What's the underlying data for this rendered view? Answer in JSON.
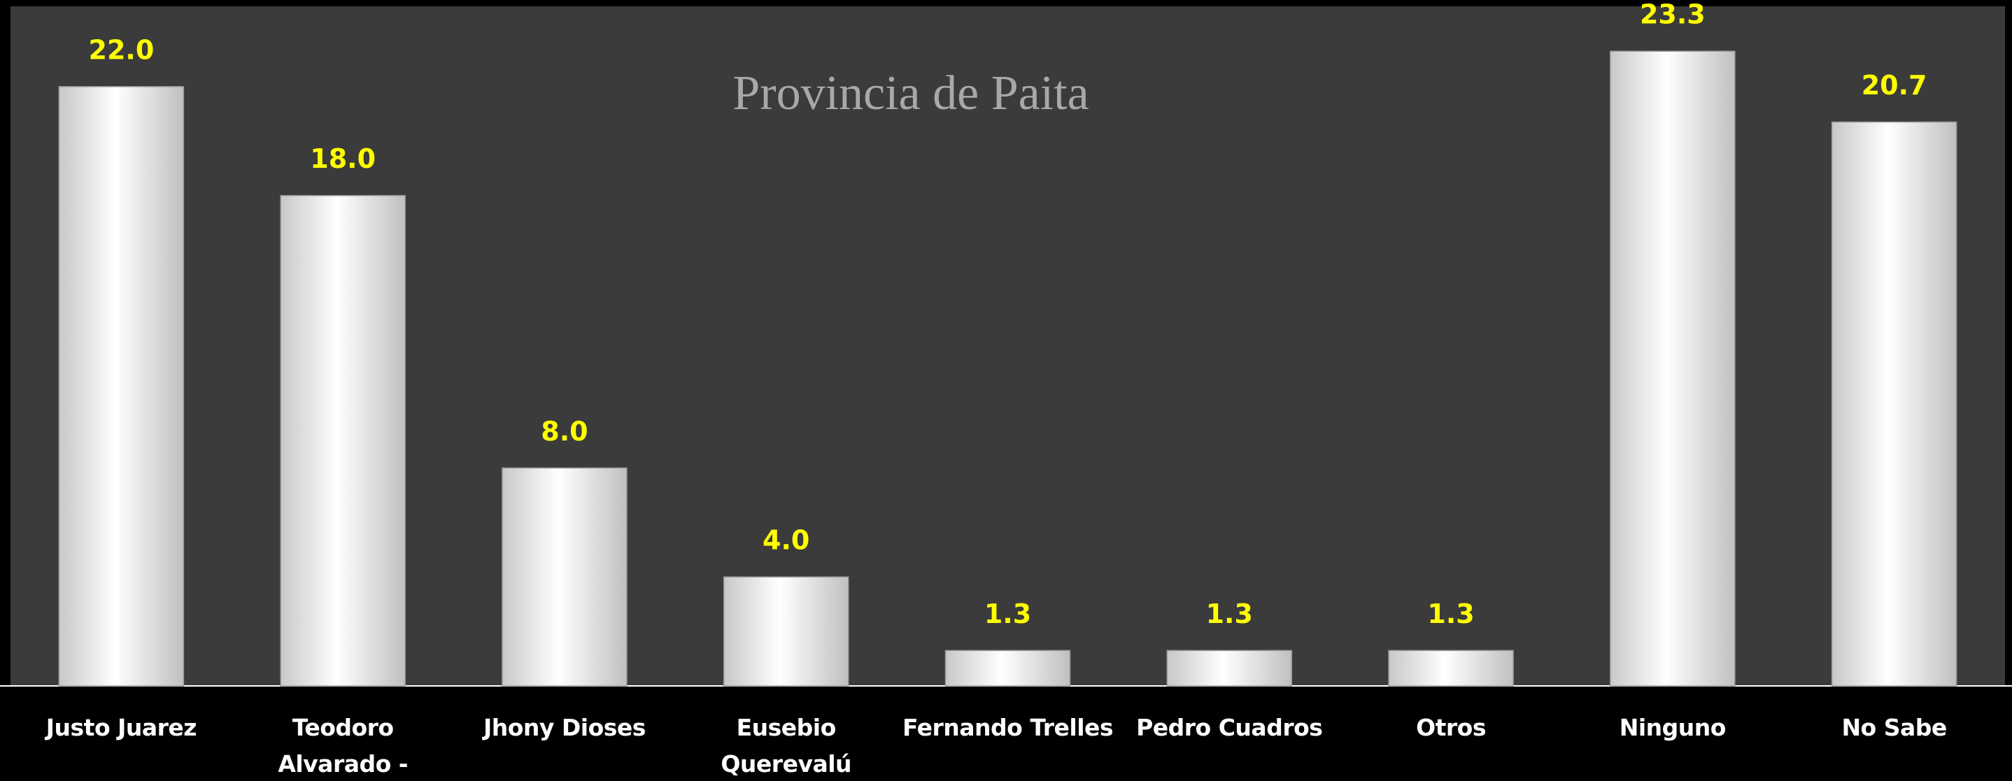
{
  "chart_data": {
    "type": "bar",
    "title": "Provincia de Paita",
    "categories": [
      "Justo Juarez",
      "Teodoro Alvarado - Chapulin",
      "Jhony Dioses",
      "Eusebio Querevalú",
      "Fernando Trelles",
      "Pedro Cuadros",
      "Otros",
      "Ninguno",
      "No Sabe"
    ],
    "values": [
      22,
      18,
      8,
      4,
      1.3,
      1.3,
      1.3,
      23.3,
      20.7
    ],
    "value_labels": [
      "22.0",
      "18.0",
      "8.0",
      "4.0",
      "1.3",
      "1.3",
      "1.3",
      "23.3",
      "20.7"
    ],
    "color": "#ffffff",
    "ylim": [
      0,
      25
    ]
  }
}
